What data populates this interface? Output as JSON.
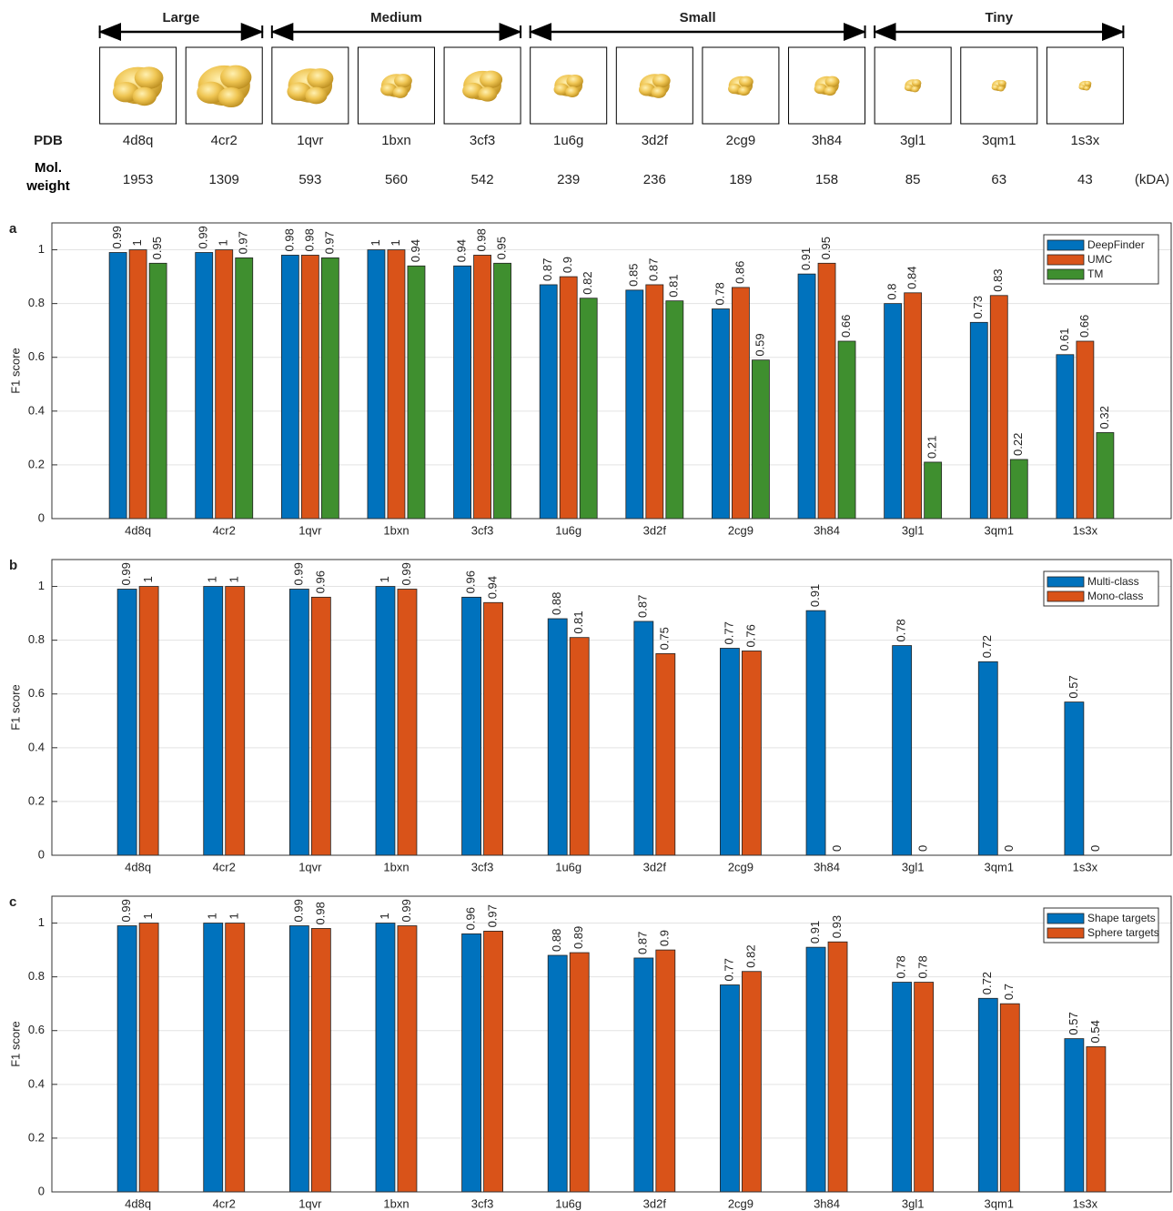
{
  "header": {
    "groups": [
      "Large",
      "Medium",
      "Small",
      "Tiny"
    ],
    "pdb_label": "PDB",
    "pdb": [
      "4d8q",
      "4cr2",
      "1qvr",
      "1bxn",
      "3cf3",
      "1u6g",
      "3d2f",
      "2cg9",
      "3h84",
      "3gl1",
      "3qm1",
      "1s3x"
    ],
    "mw_label": "Mol. weight",
    "mw": [
      1953,
      1309,
      593,
      560,
      542,
      239,
      236,
      189,
      158,
      85,
      63,
      43
    ],
    "mw_unit": "(kDA)"
  },
  "chart_data": [
    {
      "type": "bar",
      "panel": "a",
      "ylabel": "F1 score",
      "categories": [
        "4d8q",
        "4cr2",
        "1qvr",
        "1bxn",
        "3cf3",
        "1u6g",
        "3d2f",
        "2cg9",
        "3h84",
        "3gl1",
        "3qm1",
        "1s3x"
      ],
      "series": [
        {
          "name": "DeepFinder",
          "color": "#0072BD",
          "values": [
            0.99,
            0.99,
            0.98,
            1,
            0.94,
            0.87,
            0.85,
            0.78,
            0.91,
            0.8,
            0.73,
            0.61
          ]
        },
        {
          "name": "UMC",
          "color": "#D95319",
          "values": [
            1,
            1,
            0.98,
            1,
            0.98,
            0.9,
            0.87,
            0.86,
            0.95,
            0.84,
            0.83,
            0.66
          ]
        },
        {
          "name": "TM",
          "color": "#3f8f2f",
          "values": [
            0.95,
            0.97,
            0.97,
            0.94,
            0.95,
            0.82,
            0.81,
            0.59,
            0.66,
            0.21,
            0.22,
            0.32
          ]
        }
      ],
      "ylim": [
        0,
        1.1
      ],
      "yticks": [
        0,
        0.2,
        0.4,
        0.6,
        0.8,
        1
      ],
      "grid": true,
      "legend": "upper right"
    },
    {
      "type": "bar",
      "panel": "b",
      "ylabel": "F1 score",
      "categories": [
        "4d8q",
        "4cr2",
        "1qvr",
        "1bxn",
        "3cf3",
        "1u6g",
        "3d2f",
        "2cg9",
        "3h84",
        "3gl1",
        "3qm1",
        "1s3x"
      ],
      "series": [
        {
          "name": "Multi-class",
          "color": "#0072BD",
          "values": [
            0.99,
            1,
            0.99,
            1,
            0.96,
            0.88,
            0.87,
            0.77,
            0.91,
            0.78,
            0.72,
            0.57
          ]
        },
        {
          "name": "Mono-class",
          "color": "#D95319",
          "values": [
            1,
            1,
            0.96,
            0.99,
            0.94,
            0.81,
            0.75,
            0.76,
            0,
            0,
            0,
            0
          ]
        }
      ],
      "ylim": [
        0,
        1.1
      ],
      "yticks": [
        0,
        0.2,
        0.4,
        0.6,
        0.8,
        1
      ],
      "grid": true,
      "legend": "upper right"
    },
    {
      "type": "bar",
      "panel": "c",
      "ylabel": "F1 score",
      "categories": [
        "4d8q",
        "4cr2",
        "1qvr",
        "1bxn",
        "3cf3",
        "1u6g",
        "3d2f",
        "2cg9",
        "3h84",
        "3gl1",
        "3qm1",
        "1s3x"
      ],
      "series": [
        {
          "name": "Shape targets",
          "color": "#0072BD",
          "values": [
            0.99,
            1,
            0.99,
            1,
            0.96,
            0.88,
            0.87,
            0.77,
            0.91,
            0.78,
            0.72,
            0.57
          ]
        },
        {
          "name": "Sphere targets",
          "color": "#D95319",
          "values": [
            1,
            1,
            0.98,
            0.99,
            0.97,
            0.89,
            0.9,
            0.82,
            0.93,
            0.78,
            0.7,
            0.54
          ]
        }
      ],
      "ylim": [
        0,
        1.1
      ],
      "yticks": [
        0,
        0.2,
        0.4,
        0.6,
        0.8,
        1
      ],
      "grid": true,
      "legend": "upper right"
    }
  ]
}
